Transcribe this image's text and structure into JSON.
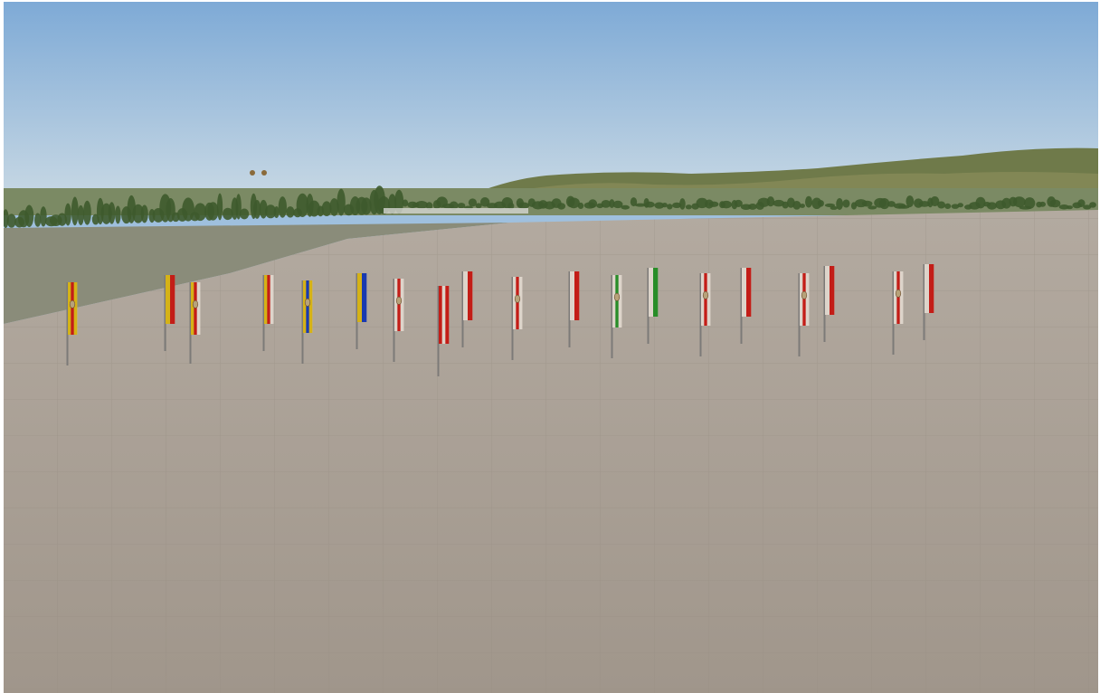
{
  "scene": {
    "sky_top_color": "#7eaad6",
    "sky_horizon_color": "#c9d9e4",
    "apron_color": "#a59b90",
    "grass_color": "#8a8c7a",
    "tree_color": "#3e5a2c",
    "hill_color": "#6f7a4a",
    "balloon_count": 2
  },
  "flags": [
    {
      "name": "flag-1",
      "stripes": [
        "#e8c21a",
        "#d4201a",
        "#e8c21a"
      ],
      "emblem": true
    },
    {
      "name": "flag-2",
      "stripes": [
        "#e8c21a",
        "#d4201a"
      ],
      "emblem": false
    },
    {
      "name": "flag-3",
      "stripes": [
        "#e8c21a",
        "#d4201a",
        "#f0e6dc"
      ],
      "emblem": true
    },
    {
      "name": "flag-4",
      "stripes": [
        "#e8c21a",
        "#d4201a",
        "#f0e6dc"
      ],
      "emblem": false
    },
    {
      "name": "flag-5",
      "stripes": [
        "#e8c21a",
        "#1c3fbf",
        "#e8c21a"
      ],
      "emblem": true
    },
    {
      "name": "flag-6",
      "stripes": [
        "#e8c21a",
        "#1c3fbf"
      ],
      "emblem": false
    },
    {
      "name": "flag-7",
      "stripes": [
        "#f0e6dc",
        "#d4201a",
        "#f0e6dc"
      ],
      "emblem": true
    },
    {
      "name": "flag-8",
      "stripes": [
        "#d4201a",
        "#f0e6dc",
        "#d4201a"
      ],
      "emblem": false
    },
    {
      "name": "flag-9",
      "stripes": [
        "#f0e6dc",
        "#d4201a"
      ],
      "emblem": false
    },
    {
      "name": "flag-10",
      "stripes": [
        "#f0e6dc",
        "#d4201a",
        "#f0e6dc"
      ],
      "emblem": true
    },
    {
      "name": "flag-11",
      "stripes": [
        "#f0e6dc",
        "#d4201a"
      ],
      "emblem": false
    },
    {
      "name": "flag-12",
      "stripes": [
        "#f0e6dc",
        "#2c9a2c",
        "#f0e6dc"
      ],
      "emblem": true
    },
    {
      "name": "flag-13",
      "stripes": [
        "#f0e6dc",
        "#2c9a2c"
      ],
      "emblem": false
    },
    {
      "name": "flag-14",
      "stripes": [
        "#f0e6dc",
        "#d4201a",
        "#f0e6dc"
      ],
      "emblem": true
    },
    {
      "name": "flag-15",
      "stripes": [
        "#f0e6dc",
        "#d4201a"
      ],
      "emblem": false
    },
    {
      "name": "flag-16",
      "stripes": [
        "#f0e6dc",
        "#d4201a",
        "#f0e6dc"
      ],
      "emblem": true
    },
    {
      "name": "flag-17",
      "stripes": [
        "#f0e6dc",
        "#d4201a"
      ],
      "emblem": false
    },
    {
      "name": "flag-18",
      "stripes": [
        "#f0e6dc",
        "#d4201a",
        "#f0e6dc"
      ],
      "emblem": true
    },
    {
      "name": "flag-19",
      "stripes": [
        "#f0e6dc",
        "#d4201a"
      ],
      "emblem": false
    }
  ]
}
